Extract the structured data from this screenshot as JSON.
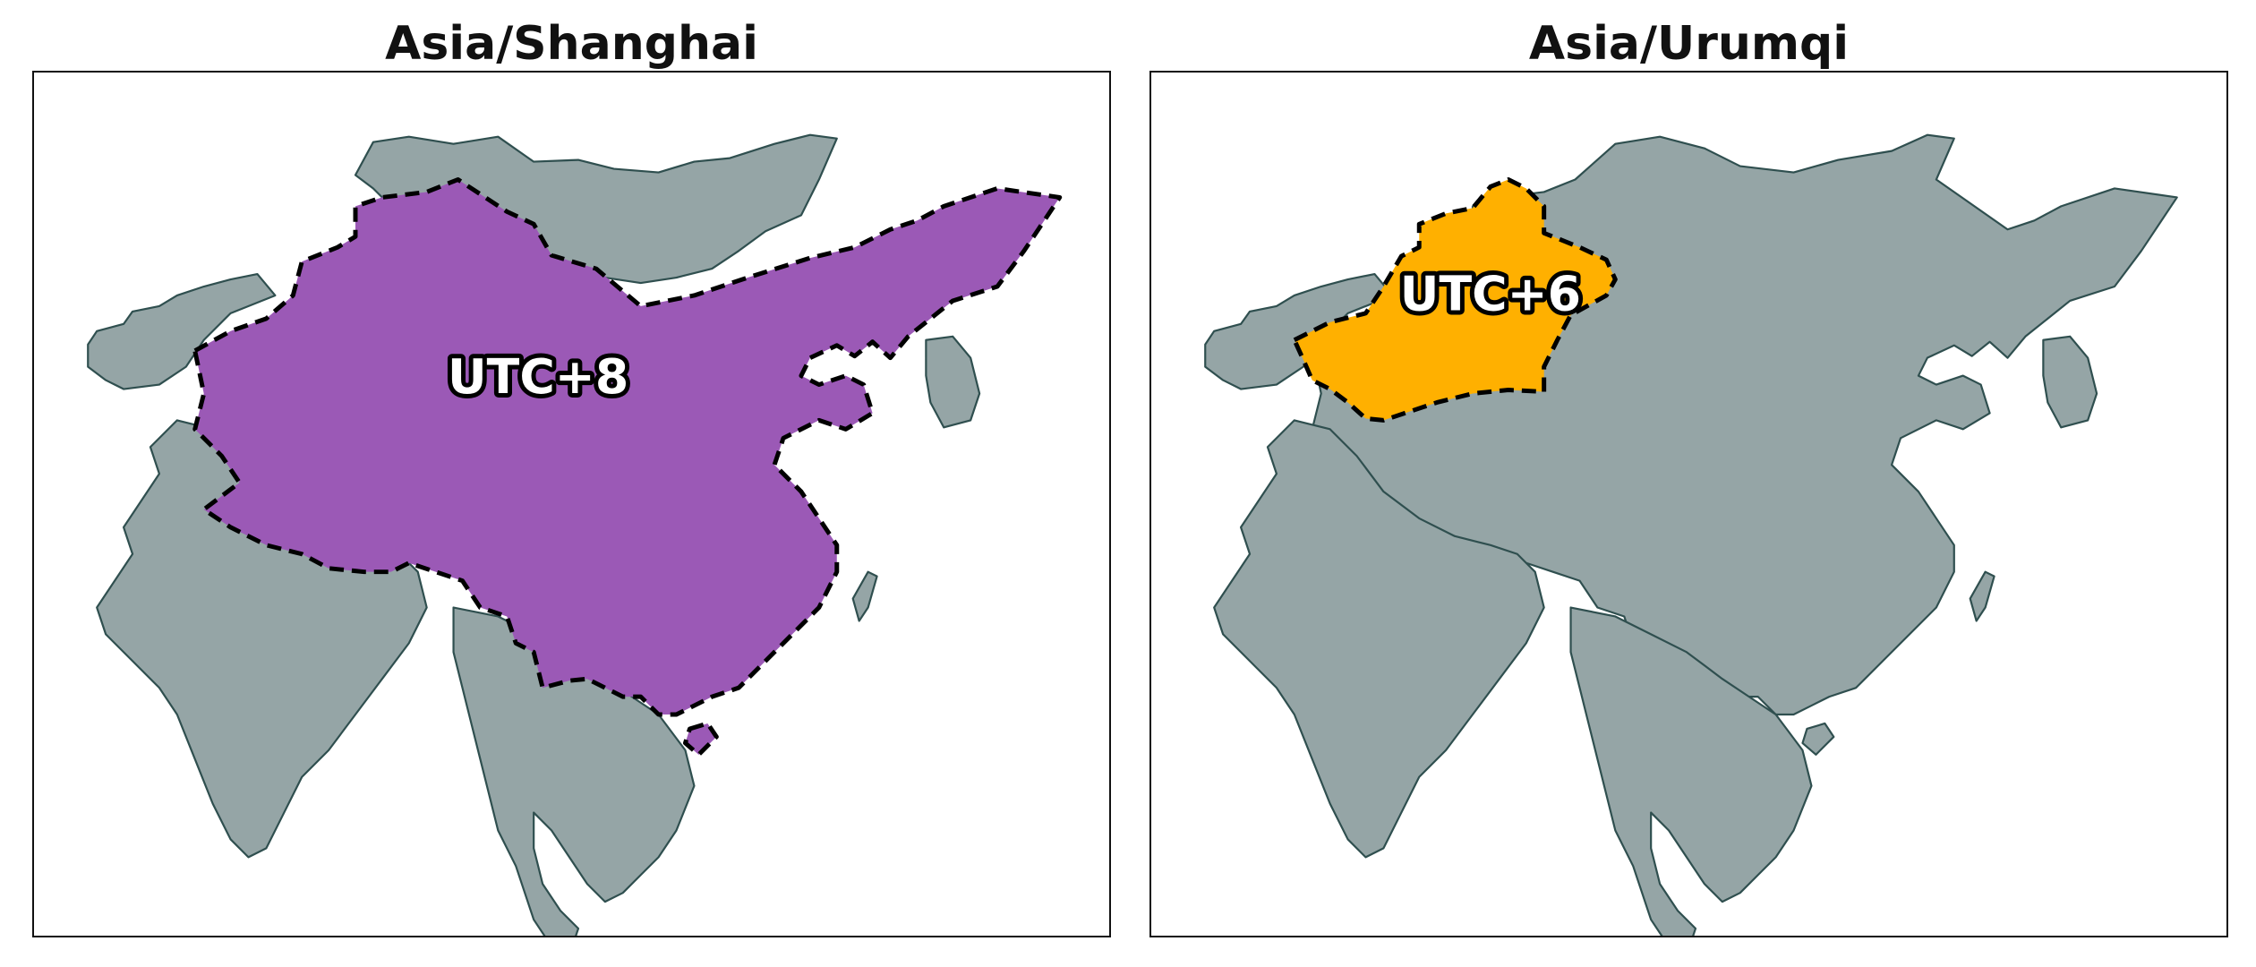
{
  "panels": [
    {
      "title": "Asia/Shanghai",
      "label": "UTC+8",
      "highlight_color": "#9b59b6",
      "highlight_region": "China"
    },
    {
      "title": "Asia/Urumqi",
      "label": "UTC+6",
      "highlight_color": "#ffb000",
      "highlight_region": "Xinjiang"
    }
  ],
  "land_color": "#95a5a6",
  "border_color": "#2f4f4f"
}
